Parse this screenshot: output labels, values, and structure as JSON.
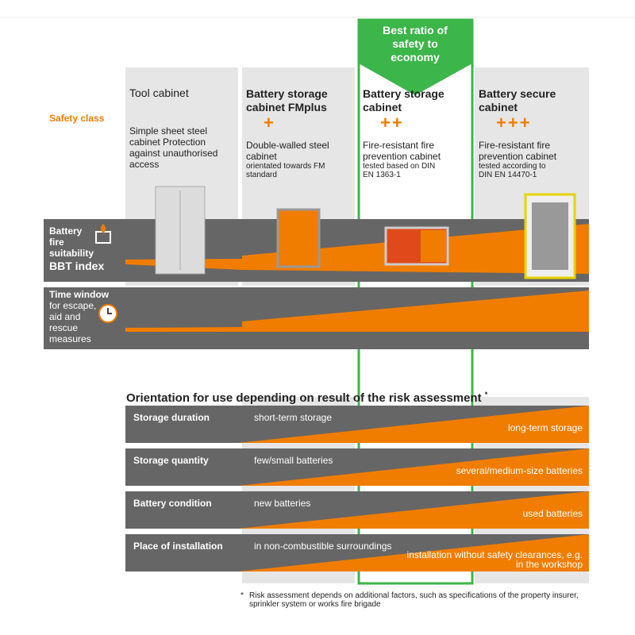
{
  "safety_class_label": "Safety class",
  "highlight": "Best ratio of safety to economy",
  "columns": [
    {
      "title": "Tool cabinet",
      "rating": "",
      "description": "Simple sheet steel cabinet Protection against unauthorised access",
      "note": ""
    },
    {
      "title": "Battery storage cabinet FMplus",
      "rating": "+",
      "description": "Double-walled steel cabinet",
      "note": "orientated towards FM standard"
    },
    {
      "title": "Battery storage cabinet",
      "rating": "++",
      "description": "Fire-resistant fire prevention cabinet",
      "note": "tested based on DIN EN 1363-1"
    },
    {
      "title": "Battery secure cabinet",
      "rating": "+++",
      "description": "Fire-resistant fire prevention cabinet",
      "note": "tested according to DIN EN 14470-1"
    }
  ],
  "bands": [
    {
      "label": "Battery fire suitability",
      "sub": "BBT index"
    },
    {
      "label": "Time window",
      "sub": "for escape, aid and rescue measures"
    }
  ],
  "orientation": {
    "title": "Orientation for use depending on result of the risk assessment",
    "mark": "*",
    "rows": [
      {
        "label": "Storage duration",
        "low": "short-term storage",
        "high": "long-term storage"
      },
      {
        "label": "Storage quantity",
        "low": "few/small batteries",
        "high": "several/medium-size batteries"
      },
      {
        "label": "Battery condition",
        "low": "new batteries",
        "high": "used batteries"
      },
      {
        "label": "Place of installation",
        "low": "in non-combustible surroundings",
        "high": "installation without safety clearances, e.g. in the workshop"
      }
    ]
  },
  "footnote": {
    "mark": "*",
    "text": "Risk assessment depends on additional factors, such as specifications of the property insurer, sprinkler system or works fire brigade"
  }
}
